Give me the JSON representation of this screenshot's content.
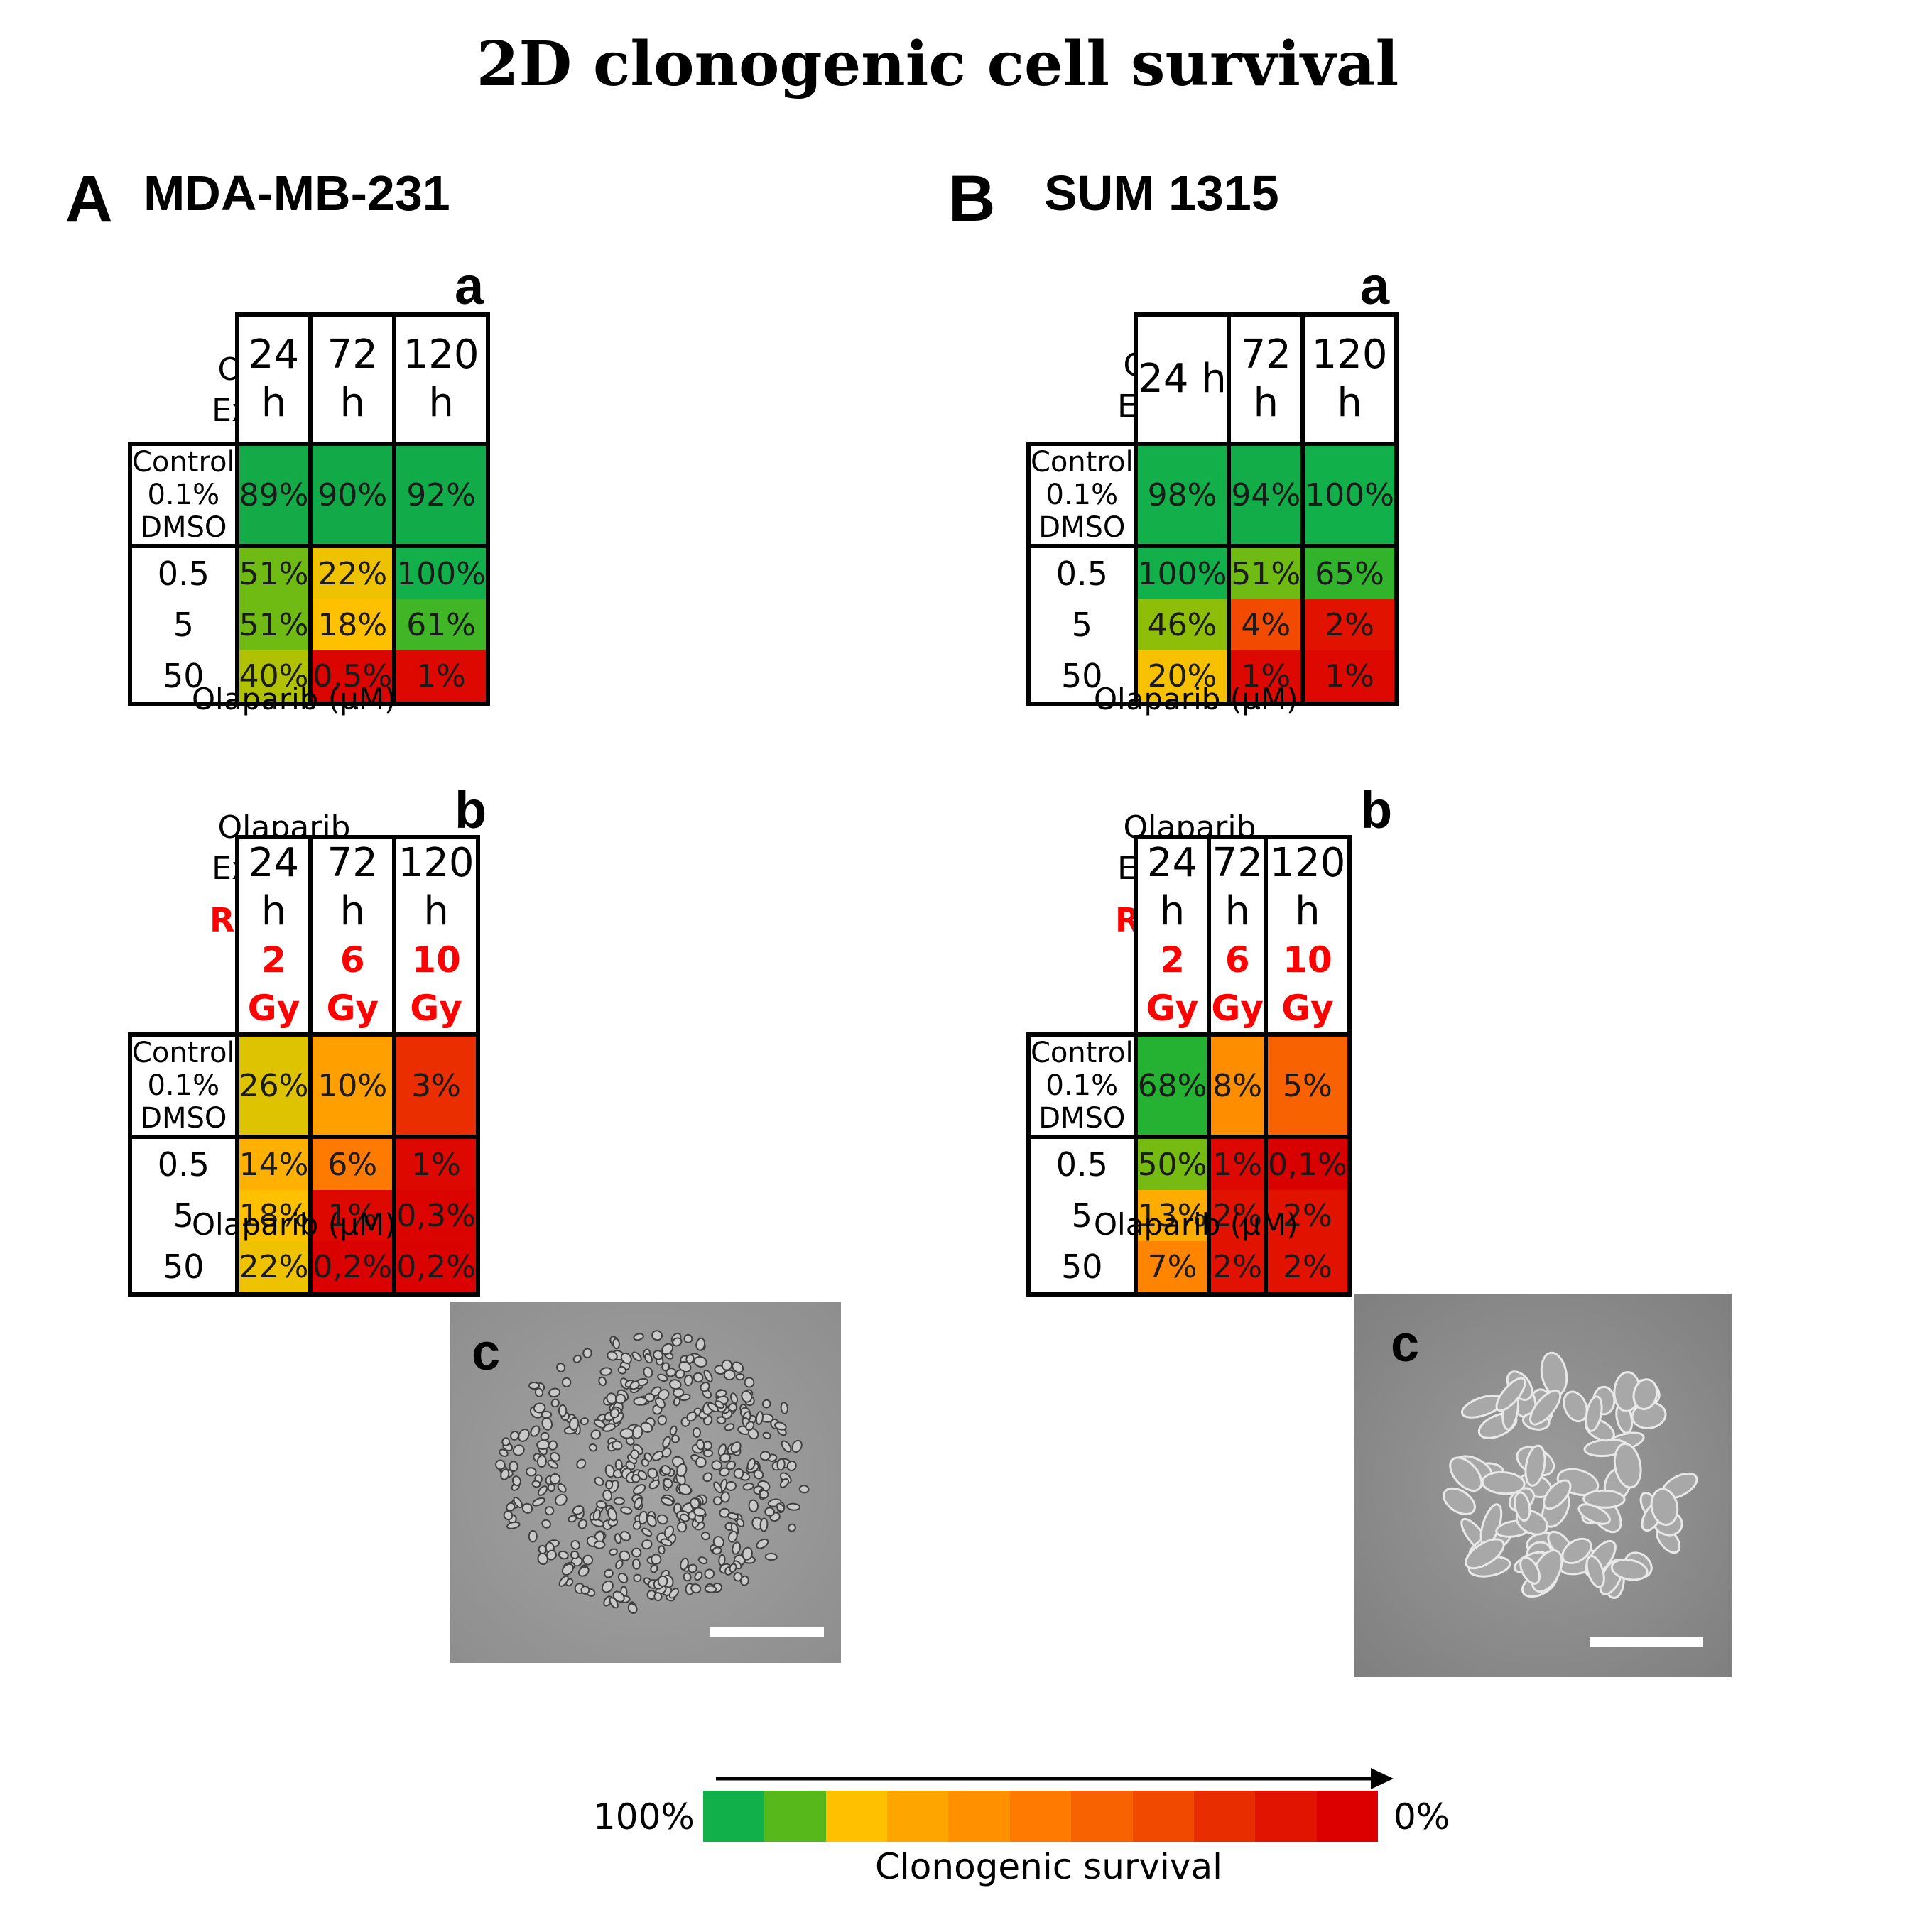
{
  "title": "2D clonogenic cell survival",
  "row_header": "Olaparib Exposure",
  "row_header_lines": [
    "Olaparib",
    "Exposure"
  ],
  "rx_label": "RX dose",
  "axis_unit": "Olaparib (µM)",
  "panels": [
    {
      "letter": "A",
      "cell_line": "MDA-MB-231",
      "table_a": {
        "letter": "a",
        "columns": [
          "24 h",
          "72 h",
          "120 h"
        ],
        "rows": [
          {
            "label": "Control 0.1% DMSO",
            "values": [
              "89%",
              "90%",
              "92%"
            ]
          },
          {
            "label": "0.5",
            "values": [
              "51%",
              "22%",
              "100%"
            ]
          },
          {
            "label": "5",
            "values": [
              "51%",
              "18%",
              "61%"
            ]
          },
          {
            "label": "50",
            "values": [
              "40%",
              "0,5%",
              "1%"
            ]
          }
        ]
      },
      "table_b": {
        "letter": "b",
        "columns": [
          "24 h",
          "72 h",
          "120 h"
        ],
        "doses": [
          "2 Gy",
          "6 Gy",
          "10 Gy"
        ],
        "rows": [
          {
            "label": "Control 0.1% DMSO",
            "values": [
              "26%",
              "10%",
              "3%"
            ]
          },
          {
            "label": "0.5",
            "values": [
              "14%",
              "6%",
              "1%"
            ]
          },
          {
            "label": "5",
            "values": [
              "18%",
              "1%",
              "0,3%"
            ]
          },
          {
            "label": "50",
            "values": [
              "22%",
              "0,2%",
              "0,2%"
            ]
          }
        ]
      },
      "image_label": "c"
    },
    {
      "letter": "B",
      "cell_line": "SUM 1315",
      "table_a": {
        "letter": "a",
        "columns": [
          "24 h",
          "72 h",
          "120 h"
        ],
        "rows": [
          {
            "label": "Control 0.1% DMSO",
            "values": [
              "98%",
              "94%",
              "100%"
            ]
          },
          {
            "label": "0.5",
            "values": [
              "100%",
              "51%",
              "65%"
            ]
          },
          {
            "label": "5",
            "values": [
              "46%",
              "4%",
              "2%"
            ]
          },
          {
            "label": "50",
            "values": [
              "20%",
              "1%",
              "1%"
            ]
          }
        ]
      },
      "table_b": {
        "letter": "b",
        "columns": [
          "24 h",
          "72 h",
          "120 h"
        ],
        "doses": [
          "2 Gy",
          "6 Gy",
          "10 Gy"
        ],
        "rows": [
          {
            "label": "Control 0.1% DMSO",
            "values": [
              "68%",
              "8%",
              "5%"
            ]
          },
          {
            "label": "0.5",
            "values": [
              "50%",
              "1%",
              "0,1%"
            ]
          },
          {
            "label": "5",
            "values": [
              "13%",
              "2%",
              "2%"
            ]
          },
          {
            "label": "50",
            "values": [
              "7%",
              "2%",
              "2%"
            ]
          }
        ]
      },
      "image_label": "c"
    }
  ],
  "colors": {
    "green": "#12b04b",
    "light_green": "#56b81b",
    "yellow_green": "#a8c000",
    "yellow": "#ffc000",
    "amber": "#ff9e00",
    "orange": "#ff7a00",
    "orange_red": "#f24900",
    "red": "#e00000"
  },
  "legend": {
    "left": "100%",
    "right": "0%",
    "caption": "Clonogenic survival",
    "swatches": [
      "#12b04b",
      "#56b81b",
      "#ffc000",
      "#ffa500",
      "#ff9000",
      "#ff7a00",
      "#f86200",
      "#f24900",
      "#e82e00",
      "#e01400",
      "#dd0000"
    ]
  },
  "chart_data": {
    "type": "table",
    "title": "2D clonogenic cell survival",
    "row_values_uM": [
      0.5,
      5,
      50
    ],
    "exposure_h": [
      24,
      72,
      120
    ],
    "rx_dose_Gy": [
      2,
      6,
      10
    ],
    "survival_percent": {
      "MDA-MB-231": {
        "olaparib": {
          "control": [
            89,
            90,
            92
          ],
          "0.5": [
            51,
            22,
            100
          ],
          "5": [
            51,
            18,
            61
          ],
          "50": [
            40,
            0.5,
            1
          ]
        },
        "olaparib_plus_rx": {
          "control": [
            26,
            10,
            3
          ],
          "0.5": [
            14,
            6,
            1
          ],
          "5": [
            18,
            1,
            0.3
          ],
          "50": [
            22,
            0.2,
            0.2
          ]
        }
      },
      "SUM 1315": {
        "olaparib": {
          "control": [
            98,
            94,
            100
          ],
          "0.5": [
            100,
            51,
            65
          ],
          "5": [
            46,
            4,
            2
          ],
          "50": [
            20,
            1,
            1
          ]
        },
        "olaparib_plus_rx": {
          "control": [
            68,
            8,
            5
          ],
          "0.5": [
            50,
            1,
            0.1
          ],
          "5": [
            13,
            2,
            2
          ],
          "50": [
            7,
            2,
            2
          ]
        }
      }
    }
  }
}
